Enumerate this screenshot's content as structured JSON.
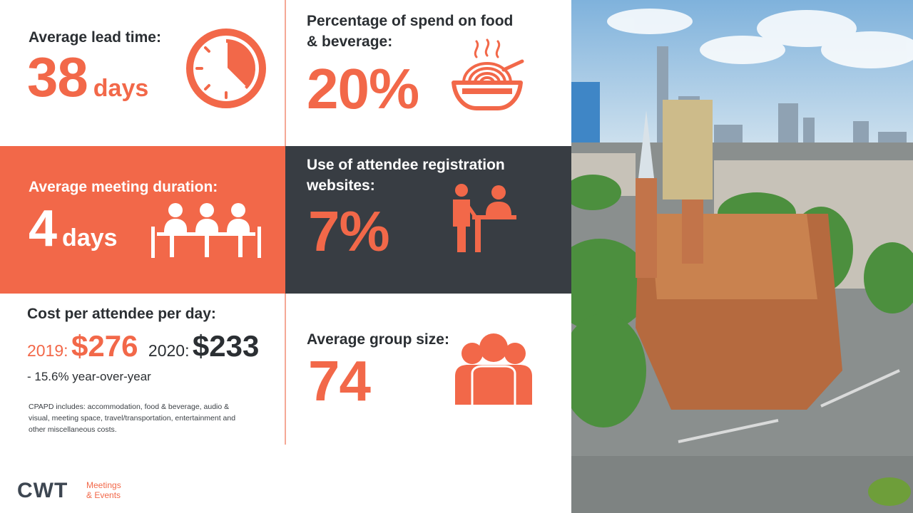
{
  "lead_time": {
    "label": "Average lead time:",
    "value": "38",
    "unit": "days",
    "icon": "clock-icon"
  },
  "fnb_spend": {
    "label_line1": "Percentage of spend on food",
    "label_line2": "& beverage:",
    "value": "20%",
    "icon": "food-bowl-icon"
  },
  "meeting_duration": {
    "label": "Average meeting duration:",
    "value": "4",
    "unit": "days",
    "icon": "meeting-table-icon"
  },
  "registration": {
    "label_line1": "Use of attendee registration",
    "label_line2": "websites:",
    "value": "7%",
    "icon": "registration-desk-icon"
  },
  "cost_per_attendee": {
    "label": "Cost per attendee per day:",
    "year_2019": "2019:",
    "amount_2019": "$276",
    "year_2020": "2020:",
    "amount_2020": "$233",
    "change": "- 15.6% year-over-year",
    "note": "CPAPD includes: accommodation, food & beverage, audio & visual, meeting space, travel/transportation, entertainment and other miscellaneous costs."
  },
  "group_size": {
    "label": "Average group size:",
    "value": "74",
    "icon": "group-icon"
  },
  "logo": {
    "word": "CWT",
    "sub_line1": "Meetings",
    "sub_line2": "& Events"
  },
  "photo": {
    "subject": "cathedral-city-aerial-photo"
  },
  "colors": {
    "coral": "#F26849",
    "dark_panel": "#383D43",
    "text": "#2B2F33",
    "white": "#FFFFFF"
  }
}
